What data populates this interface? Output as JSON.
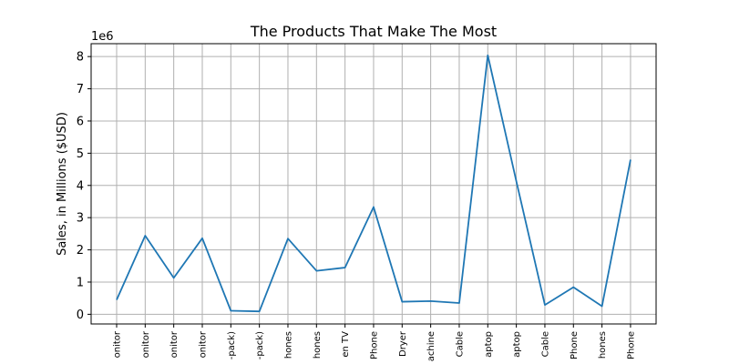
{
  "chart_data": {
    "type": "line",
    "title": "The Products That Make The Most",
    "ylabel": "Sales, in Millions ($USD)",
    "xlabel": "",
    "offset_label": "1e6",
    "grid": true,
    "ylim": [
      -0.3,
      8.4
    ],
    "yticks": [
      0,
      1,
      2,
      3,
      4,
      5,
      6,
      7,
      8
    ],
    "categories": [
      "onitor",
      "onitor",
      "onitor",
      "onitor",
      "-pack)",
      "-pack)",
      "hones",
      "hones",
      "en TV",
      "Phone",
      "Dryer",
      "achine",
      "Cable",
      "aptop",
      "aptop",
      "Cable",
      "Phone",
      "hones",
      "Phone"
    ],
    "series": [
      {
        "color": "#1f77b4",
        "values": [
          0.45,
          2.44,
          1.13,
          2.36,
          0.11,
          0.09,
          2.35,
          1.35,
          1.45,
          3.33,
          0.39,
          0.41,
          0.35,
          8.04,
          4.13,
          0.29,
          0.84,
          0.25,
          4.8
        ]
      }
    ]
  }
}
